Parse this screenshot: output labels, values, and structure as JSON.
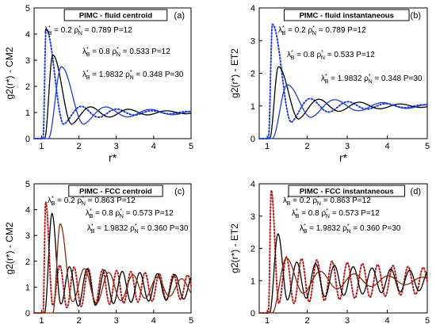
{
  "chart_data": [
    {
      "type": "line",
      "panel_label": "(a)",
      "title": "PIMC - fluid centroid",
      "xlabel": "r*",
      "ylabel": "g2(r*) - CM2",
      "xlim": [
        0.8,
        5
      ],
      "ylim": [
        0,
        5
      ],
      "xticks": [
        "1",
        "2",
        "3",
        "4",
        "5"
      ],
      "yticks": [
        "0",
        "1",
        "2",
        "3",
        "4",
        "5"
      ],
      "grid": false,
      "curves": [
        {
          "color": "#1f3fd6",
          "style": "dotted",
          "start": 1.04,
          "peak": 1.12,
          "peak_y": 4.2,
          "wavelength": 0.95,
          "amp": 0.34,
          "decay": 1.5,
          "first_min": 0.55
        },
        {
          "color": "#000000",
          "style": "solid",
          "start": 1.08,
          "peak": 1.3,
          "peak_y": 3.2,
          "wavelength": 1.02,
          "amp": 0.32,
          "decay": 1.6,
          "first_min": 0.55
        },
        {
          "color": "#1f3fd6",
          "style": "solid",
          "start": 1.18,
          "peak": 1.53,
          "peak_y": 2.75,
          "wavelength": 1.2,
          "amp": 0.32,
          "decay": 1.8,
          "first_min": 0.55
        }
      ],
      "annotations": [
        {
          "lambda": "0.2",
          "rho": "0.789",
          "P": "12"
        },
        {
          "lambda": "0.8",
          "rho": "0.533",
          "P": "12"
        },
        {
          "lambda": "1.9832",
          "rho": "0.348",
          "P": "30"
        }
      ]
    },
    {
      "type": "line",
      "panel_label": "(b)",
      "title": "PIMC - fluid instantaneous",
      "xlabel": "r*",
      "ylabel": "g2(r*) - ET2",
      "xlim": [
        0.8,
        5
      ],
      "ylim": [
        0,
        4
      ],
      "xticks": [
        "1",
        "2",
        "3",
        "4",
        "5"
      ],
      "yticks": [
        "0",
        "1",
        "2",
        "3",
        "4"
      ],
      "grid": false,
      "curves": [
        {
          "color": "#1f3fd6",
          "style": "dotted",
          "start": 1.03,
          "peak": 1.13,
          "peak_y": 3.5,
          "wavelength": 0.95,
          "amp": 0.34,
          "decay": 1.5,
          "first_min": 0.5
        },
        {
          "color": "#000000",
          "style": "solid",
          "start": 1.06,
          "peak": 1.28,
          "peak_y": 2.2,
          "wavelength": 1.02,
          "amp": 0.3,
          "decay": 1.6,
          "first_min": 0.6
        },
        {
          "color": "#1f3fd6",
          "style": "solid",
          "start": 1.12,
          "peak": 1.5,
          "peak_y": 1.65,
          "wavelength": 1.2,
          "amp": 0.28,
          "decay": 1.8,
          "first_min": 0.65
        }
      ],
      "annotations": [
        {
          "lambda": "0.2",
          "rho": "0.789",
          "P": "12"
        },
        {
          "lambda": "0.8",
          "rho": "0.533",
          "P": "12"
        },
        {
          "lambda": "1.9832",
          "rho": "0.348",
          "P": "30"
        }
      ]
    },
    {
      "type": "line",
      "panel_label": "(c)",
      "title": "PIMC - FCC centroid",
      "xlabel": "r*",
      "ylabel": "g2(r*) - CM2",
      "xlim": [
        0.8,
        5
      ],
      "ylim": [
        0,
        5
      ],
      "xticks": [
        "1",
        "2",
        "3",
        "4",
        "5"
      ],
      "yticks": [
        "0",
        "1",
        "2",
        "3",
        "4",
        "5"
      ],
      "grid": false,
      "curves": [
        {
          "color": "#b81c1c",
          "style": "dotted",
          "start": 1.04,
          "peak": 1.11,
          "peak_y": 4.3,
          "wavelength": 0.38,
          "amp": 0.85,
          "decay": 6.0,
          "first_min": 0.3
        },
        {
          "color": "#000000",
          "style": "solid",
          "start": 1.08,
          "peak": 1.28,
          "peak_y": 3.85,
          "wavelength": 0.47,
          "amp": 0.8,
          "decay": 6.0,
          "first_min": 0.35
        },
        {
          "color": "#8a2a10",
          "style": "solid",
          "start": 1.3,
          "peak": 1.5,
          "peak_y": 3.45,
          "wavelength": 0.65,
          "amp": 0.75,
          "decay": 3.5,
          "first_min": 0.45
        }
      ],
      "annotations": [
        {
          "lambda": "0.2",
          "rho": "0.863",
          "P": "12"
        },
        {
          "lambda": "0.8",
          "rho": "0.573",
          "P": "12"
        },
        {
          "lambda": "1.9832",
          "rho": "0.360",
          "P": "30"
        }
      ]
    },
    {
      "type": "line",
      "panel_label": "(d)",
      "title": "PIMC - FCC instantaneous",
      "xlabel": "r*",
      "ylabel": "g2(r*) - ET2",
      "xlim": [
        0.8,
        5
      ],
      "ylim": [
        0,
        4
      ],
      "xticks": [
        "1",
        "2",
        "3",
        "4",
        "5"
      ],
      "yticks": [
        "0",
        "1",
        "2",
        "3",
        "4"
      ],
      "grid": false,
      "curves": [
        {
          "color": "#b81c1c",
          "style": "dotted",
          "start": 1.03,
          "peak": 1.1,
          "peak_y": 3.8,
          "wavelength": 0.38,
          "amp": 0.75,
          "decay": 6.0,
          "first_min": 0.3
        },
        {
          "color": "#000000",
          "style": "solid",
          "start": 1.06,
          "peak": 1.27,
          "peak_y": 2.45,
          "wavelength": 0.47,
          "amp": 0.6,
          "decay": 5.0,
          "first_min": 0.4
        },
        {
          "color": "#8a2a10",
          "style": "solid",
          "start": 1.12,
          "peak": 1.48,
          "peak_y": 1.7,
          "wavelength": 0.85,
          "amp": 0.35,
          "decay": 2.5,
          "first_min": 0.6
        }
      ],
      "annotations": [
        {
          "lambda": "0.2",
          "rho": "0.863",
          "P": "12"
        },
        {
          "lambda": "0.8",
          "rho": "0.573",
          "P": "12"
        },
        {
          "lambda": "1.9832",
          "rho": "0.360",
          "P": "30"
        }
      ]
    }
  ]
}
